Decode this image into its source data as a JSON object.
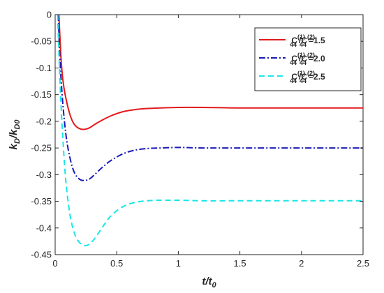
{
  "chart_data": {
    "type": "line",
    "title": "",
    "xlabel": "t/t",
    "xlabel_sub": "0",
    "ylabel": "k",
    "ylabel_sub": "D",
    "ylabel_mid": "/k",
    "ylabel_sub2": "D0",
    "xlim": [
      0,
      2.5
    ],
    "ylim": [
      -0.45,
      0
    ],
    "xticks": [
      0,
      0.5,
      1,
      1.5,
      2,
      2.5
    ],
    "xtick_labels": [
      "0",
      "0.5",
      "1",
      "1.5",
      "2",
      "2.5"
    ],
    "yticks": [
      0,
      -0.05,
      -0.1,
      -0.15,
      -0.2,
      -0.25,
      -0.3,
      -0.35,
      -0.4,
      -0.45
    ],
    "ytick_labels": [
      "0",
      "-0.05",
      "-0.1",
      "-0.15",
      "-0.2",
      "-0.25",
      "-0.3",
      "-0.35",
      "-0.4",
      "-0.45"
    ],
    "grid": false,
    "legend_position": "top-right",
    "series": [
      {
        "legend": {
          "base": "C",
          "sup1": "(1)",
          "sub1": "44",
          "slash": "/C",
          "sup2": "(2)",
          "sub2": "44",
          "value": "=1.5"
        },
        "color": "#e31a1c",
        "dash": "solid",
        "x": [
          0.03,
          0.05,
          0.07,
          0.1,
          0.13,
          0.16,
          0.2,
          0.24,
          0.28,
          0.32,
          0.38,
          0.45,
          0.55,
          0.65,
          0.75,
          0.85,
          1.0,
          1.2,
          1.5,
          2.0,
          2.5
        ],
        "y": [
          0.0,
          -0.09,
          -0.135,
          -0.17,
          -0.194,
          -0.207,
          -0.214,
          -0.215,
          -0.212,
          -0.206,
          -0.198,
          -0.19,
          -0.182,
          -0.178,
          -0.176,
          -0.175,
          -0.174,
          -0.174,
          -0.175,
          -0.175,
          -0.175
        ]
      },
      {
        "legend": {
          "base": "C",
          "sup1": "(1)",
          "sub1": "44",
          "slash": "/C",
          "sup2": "(2)",
          "sub2": "44",
          "value": "=2.0"
        },
        "color": "#1a1ab8",
        "dash": "dashdot",
        "x": [
          0.025,
          0.04,
          0.06,
          0.08,
          0.1,
          0.13,
          0.16,
          0.2,
          0.24,
          0.28,
          0.32,
          0.38,
          0.45,
          0.55,
          0.65,
          0.75,
          0.85,
          1.0,
          1.2,
          1.5,
          2.0,
          2.5
        ],
        "y": [
          0.0,
          -0.09,
          -0.16,
          -0.21,
          -0.245,
          -0.278,
          -0.298,
          -0.309,
          -0.311,
          -0.308,
          -0.3,
          -0.287,
          -0.274,
          -0.261,
          -0.254,
          -0.251,
          -0.25,
          -0.249,
          -0.25,
          -0.25,
          -0.25,
          -0.25
        ]
      },
      {
        "legend": {
          "base": "C",
          "sup1": "(1)",
          "sub1": "44",
          "slash": "/C",
          "sup2": "(2)",
          "sub2": "44",
          "value": "=2.5"
        },
        "color": "#19e6e6",
        "dash": "dashed",
        "x": [
          0.02,
          0.035,
          0.05,
          0.07,
          0.09,
          0.12,
          0.15,
          0.18,
          0.22,
          0.25,
          0.28,
          0.32,
          0.38,
          0.45,
          0.55,
          0.65,
          0.75,
          0.85,
          1.0,
          1.2,
          1.5,
          2.0,
          2.5
        ],
        "y": [
          0.0,
          -0.1,
          -0.18,
          -0.26,
          -0.32,
          -0.375,
          -0.405,
          -0.422,
          -0.432,
          -0.433,
          -0.43,
          -0.42,
          -0.4,
          -0.378,
          -0.36,
          -0.352,
          -0.349,
          -0.348,
          -0.348,
          -0.349,
          -0.349,
          -0.349,
          -0.349
        ]
      }
    ]
  }
}
